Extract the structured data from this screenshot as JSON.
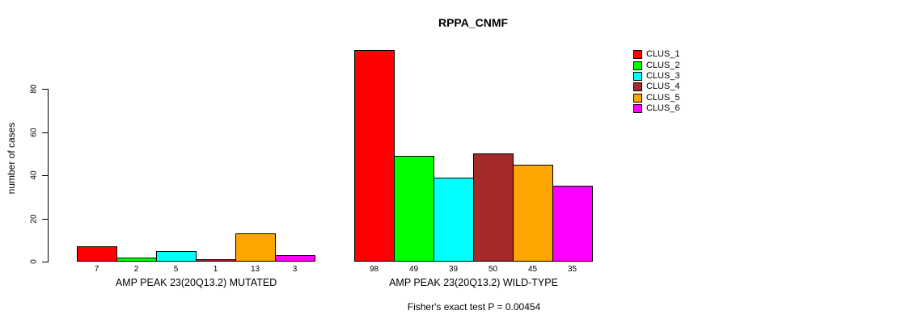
{
  "chart_data": {
    "type": "bar",
    "title": "RPPA_CNMF",
    "ylabel": "number of cases",
    "ylim": [
      0,
      80
    ],
    "yticks": [
      0,
      20,
      40,
      60,
      80
    ],
    "grid": false,
    "legend_position": "top-right",
    "series": [
      {
        "name": "CLUS_1",
        "color": "#FF0000"
      },
      {
        "name": "CLUS_2",
        "color": "#00FF00"
      },
      {
        "name": "CLUS_3",
        "color": "#00FFFF"
      },
      {
        "name": "CLUS_4",
        "color": "#A52A2A"
      },
      {
        "name": "CLUS_5",
        "color": "#FFA500"
      },
      {
        "name": "CLUS_6",
        "color": "#FF00FF"
      }
    ],
    "groups": [
      {
        "label": "AMP PEAK 23(20Q13.2) MUTATED",
        "values": [
          7,
          2,
          5,
          1,
          13,
          3
        ]
      },
      {
        "label": "AMP PEAK 23(20Q13.2) WILD-TYPE",
        "values": [
          98,
          49,
          39,
          50,
          45,
          35
        ]
      }
    ],
    "annotation": "Fisher's exact test P = 0.00454"
  }
}
